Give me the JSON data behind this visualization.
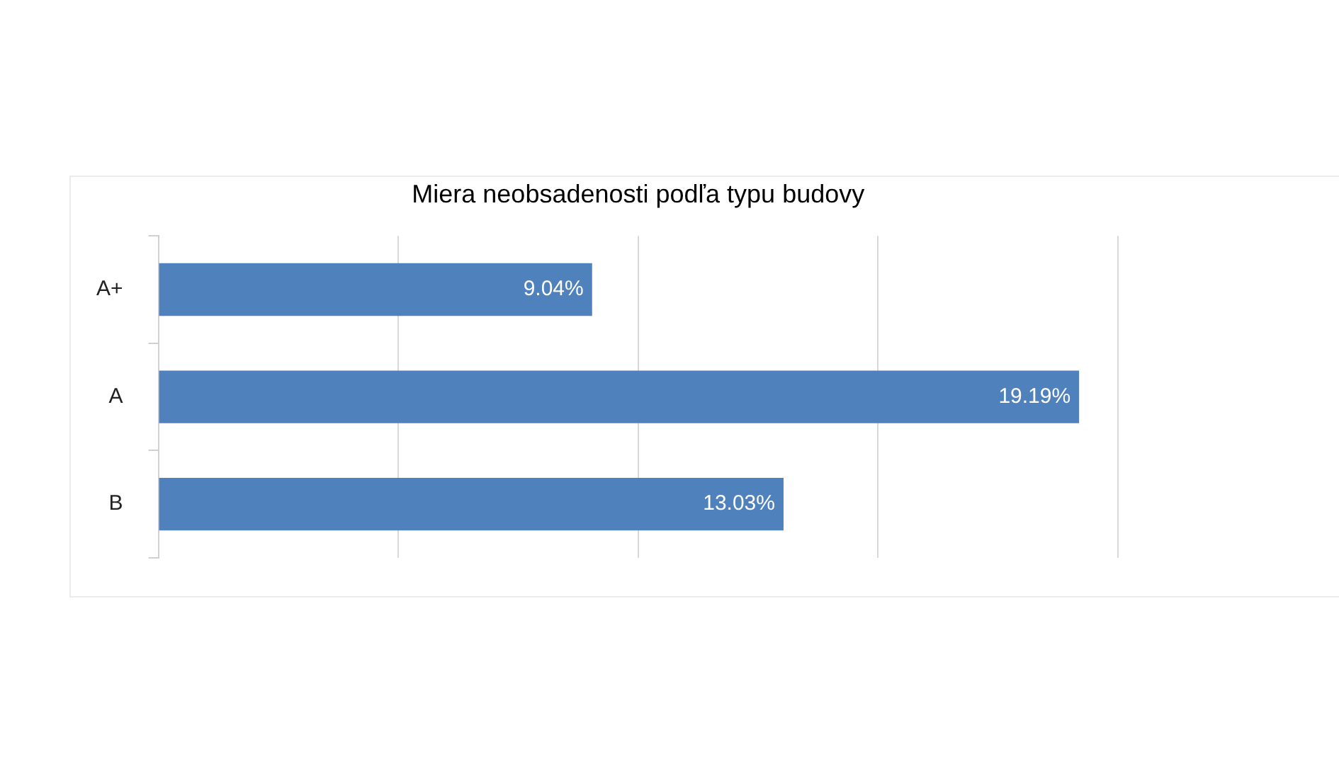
{
  "chart_data": {
    "type": "bar",
    "orientation": "horizontal",
    "title": "Miera neobsadenosti podľa typu budovy",
    "categories": [
      "A+",
      "A",
      "B"
    ],
    "values": [
      9.04,
      19.19,
      13.03
    ],
    "color": "#4f81bd",
    "value_labels": [
      "9.04%",
      "19.19%",
      "13.03%"
    ],
    "xlim": [
      0,
      20
    ],
    "xticks": [
      {
        "value": 0,
        "label": null
      },
      {
        "value": 5,
        "label": null
      },
      {
        "value": 10,
        "label": null
      },
      {
        "value": 15,
        "label": null
      },
      {
        "value": 20,
        "label": null
      }
    ],
    "tick_labels": "y",
    "grid": "x",
    "legend": false
  }
}
